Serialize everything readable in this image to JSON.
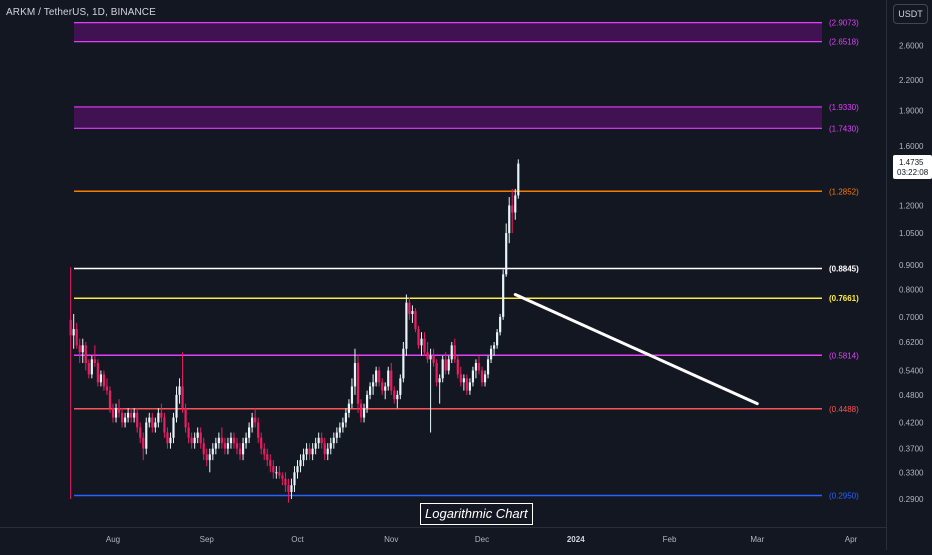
{
  "header": {
    "title": "ARKM / TetherUS, 1D, BINANCE",
    "currency": "USDT"
  },
  "watermark": "Logarithmic Chart",
  "colors": {
    "background": "#131722",
    "up": "#e8f4f8",
    "down": "#e91e63",
    "axis_text": "#b2b5be"
  },
  "chart_data": {
    "type": "candlestick",
    "scale": "log",
    "x_tick_labels": [
      "Aug",
      "Sep",
      "Oct",
      "Nov",
      "Dec",
      "2024",
      "Feb",
      "Mar",
      "Apr"
    ],
    "y_tick_labels": [
      "2.6000",
      "2.2000",
      "1.9000",
      "1.6000",
      "1.2000",
      "1.0500",
      "0.9000",
      "0.8000",
      "0.7000",
      "0.6200",
      "0.5400",
      "0.4800",
      "0.4200",
      "0.3700",
      "0.3300",
      "0.2900"
    ],
    "y_ticks": [
      2.6,
      2.2,
      1.9,
      1.6,
      1.2,
      1.05,
      0.9,
      0.8,
      0.7,
      0.62,
      0.54,
      0.48,
      0.42,
      0.37,
      0.33,
      0.29
    ],
    "ylim": [
      0.262,
      3.12
    ],
    "dates": [
      "2023-07-18",
      "2024-04-10"
    ],
    "x_tick_dates": [
      "2023-08-01",
      "2023-09-01",
      "2023-10-01",
      "2023-11-01",
      "2023-12-01",
      "2024-01-01",
      "2024-02-01",
      "2024-03-01",
      "2024-04-01"
    ],
    "last_price": {
      "value": 1.4735,
      "label": "1.4735",
      "countdown": "03:22:08"
    },
    "horizontal_levels": [
      {
        "value": 1.2852,
        "label": "(1.2852)",
        "color": "#f57c00"
      },
      {
        "value": 0.8845,
        "label": "(0.8845)",
        "color": "#ffffff"
      },
      {
        "value": 0.7661,
        "label": "(0.7661)",
        "color": "#ffeb3b"
      },
      {
        "value": 0.5814,
        "label": "(0.5814)",
        "color": "#e040fb"
      },
      {
        "value": 0.4488,
        "label": "(0.4488)",
        "color": "#ff5252"
      },
      {
        "value": 0.295,
        "label": "(0.2950)",
        "color": "#2962ff"
      }
    ],
    "zones": [
      {
        "low": 2.6518,
        "high": 2.9073,
        "label_low": "(2.6518)",
        "label_high": "(2.9073)",
        "fill": "#4a1259",
        "border": "#e040fb"
      },
      {
        "low": 1.743,
        "high": 1.933,
        "label_low": "(1.7430)",
        "label_high": "(1.9330)",
        "fill": "#4a1259",
        "border": "#e040fb"
      }
    ],
    "trendline": {
      "from": {
        "date": "2023-12-12",
        "value": 0.78
      },
      "to": {
        "date": "2024-03-01",
        "value": 0.46
      },
      "color": "#ffffff"
    },
    "candles": [
      [
        0.69,
        0.89,
        0.29,
        0.64
      ],
      [
        0.64,
        0.71,
        0.6,
        0.66
      ],
      [
        0.66,
        0.68,
        0.6,
        0.61
      ],
      [
        0.61,
        0.63,
        0.56,
        0.59
      ],
      [
        0.59,
        0.63,
        0.56,
        0.61
      ],
      [
        0.61,
        0.62,
        0.54,
        0.56
      ],
      [
        0.56,
        0.57,
        0.52,
        0.53
      ],
      [
        0.53,
        0.58,
        0.52,
        0.57
      ],
      [
        0.57,
        0.61,
        0.55,
        0.56
      ],
      [
        0.56,
        0.57,
        0.5,
        0.51
      ],
      [
        0.51,
        0.54,
        0.5,
        0.53
      ],
      [
        0.53,
        0.54,
        0.49,
        0.5
      ],
      [
        0.5,
        0.52,
        0.48,
        0.49
      ],
      [
        0.49,
        0.5,
        0.44,
        0.45
      ],
      [
        0.45,
        0.46,
        0.42,
        0.43
      ],
      [
        0.43,
        0.46,
        0.42,
        0.45
      ],
      [
        0.45,
        0.47,
        0.43,
        0.44
      ],
      [
        0.44,
        0.45,
        0.41,
        0.42
      ],
      [
        0.42,
        0.44,
        0.41,
        0.43
      ],
      [
        0.43,
        0.45,
        0.42,
        0.44
      ],
      [
        0.44,
        0.45,
        0.42,
        0.43
      ],
      [
        0.43,
        0.45,
        0.42,
        0.44
      ],
      [
        0.44,
        0.45,
        0.4,
        0.41
      ],
      [
        0.41,
        0.42,
        0.38,
        0.39
      ],
      [
        0.39,
        0.4,
        0.35,
        0.37
      ],
      [
        0.37,
        0.43,
        0.36,
        0.42
      ],
      [
        0.42,
        0.44,
        0.41,
        0.43
      ],
      [
        0.43,
        0.44,
        0.4,
        0.41
      ],
      [
        0.41,
        0.43,
        0.4,
        0.42
      ],
      [
        0.42,
        0.45,
        0.41,
        0.44
      ],
      [
        0.44,
        0.46,
        0.42,
        0.43
      ],
      [
        0.43,
        0.44,
        0.39,
        0.4
      ],
      [
        0.4,
        0.41,
        0.37,
        0.38
      ],
      [
        0.38,
        0.4,
        0.37,
        0.39
      ],
      [
        0.39,
        0.44,
        0.38,
        0.43
      ],
      [
        0.43,
        0.5,
        0.42,
        0.48
      ],
      [
        0.48,
        0.52,
        0.46,
        0.5
      ],
      [
        0.5,
        0.59,
        0.44,
        0.45
      ],
      [
        0.45,
        0.46,
        0.4,
        0.41
      ],
      [
        0.41,
        0.42,
        0.38,
        0.39
      ],
      [
        0.39,
        0.4,
        0.37,
        0.38
      ],
      [
        0.38,
        0.4,
        0.37,
        0.39
      ],
      [
        0.39,
        0.41,
        0.38,
        0.4
      ],
      [
        0.4,
        0.41,
        0.37,
        0.38
      ],
      [
        0.38,
        0.39,
        0.35,
        0.36
      ],
      [
        0.36,
        0.37,
        0.34,
        0.35
      ],
      [
        0.35,
        0.37,
        0.33,
        0.36
      ],
      [
        0.36,
        0.38,
        0.35,
        0.37
      ],
      [
        0.37,
        0.39,
        0.36,
        0.38
      ],
      [
        0.38,
        0.4,
        0.37,
        0.39
      ],
      [
        0.39,
        0.41,
        0.37,
        0.38
      ],
      [
        0.38,
        0.39,
        0.36,
        0.37
      ],
      [
        0.37,
        0.39,
        0.36,
        0.38
      ],
      [
        0.38,
        0.4,
        0.37,
        0.39
      ],
      [
        0.39,
        0.4,
        0.37,
        0.38
      ],
      [
        0.38,
        0.39,
        0.36,
        0.37
      ],
      [
        0.37,
        0.38,
        0.35,
        0.36
      ],
      [
        0.36,
        0.39,
        0.35,
        0.38
      ],
      [
        0.38,
        0.4,
        0.37,
        0.39
      ],
      [
        0.39,
        0.42,
        0.38,
        0.41
      ],
      [
        0.41,
        0.44,
        0.4,
        0.43
      ],
      [
        0.43,
        0.45,
        0.41,
        0.42
      ],
      [
        0.42,
        0.43,
        0.38,
        0.39
      ],
      [
        0.39,
        0.4,
        0.36,
        0.37
      ],
      [
        0.37,
        0.38,
        0.35,
        0.36
      ],
      [
        0.36,
        0.37,
        0.34,
        0.35
      ],
      [
        0.35,
        0.36,
        0.33,
        0.34
      ],
      [
        0.34,
        0.35,
        0.32,
        0.33
      ],
      [
        0.33,
        0.34,
        0.32,
        0.33
      ],
      [
        0.33,
        0.34,
        0.32,
        0.325
      ],
      [
        0.325,
        0.33,
        0.31,
        0.32
      ],
      [
        0.32,
        0.33,
        0.3,
        0.31
      ],
      [
        0.31,
        0.32,
        0.285,
        0.3
      ],
      [
        0.3,
        0.32,
        0.29,
        0.31
      ],
      [
        0.31,
        0.34,
        0.3,
        0.33
      ],
      [
        0.33,
        0.35,
        0.32,
        0.34
      ],
      [
        0.34,
        0.36,
        0.33,
        0.35
      ],
      [
        0.35,
        0.37,
        0.34,
        0.36
      ],
      [
        0.36,
        0.38,
        0.35,
        0.37
      ],
      [
        0.37,
        0.38,
        0.35,
        0.36
      ],
      [
        0.36,
        0.38,
        0.35,
        0.37
      ],
      [
        0.37,
        0.39,
        0.36,
        0.38
      ],
      [
        0.38,
        0.4,
        0.37,
        0.39
      ],
      [
        0.39,
        0.4,
        0.37,
        0.38
      ],
      [
        0.38,
        0.39,
        0.35,
        0.36
      ],
      [
        0.36,
        0.38,
        0.35,
        0.37
      ],
      [
        0.37,
        0.39,
        0.36,
        0.38
      ],
      [
        0.38,
        0.4,
        0.37,
        0.39
      ],
      [
        0.39,
        0.41,
        0.38,
        0.4
      ],
      [
        0.4,
        0.42,
        0.39,
        0.41
      ],
      [
        0.41,
        0.43,
        0.4,
        0.42
      ],
      [
        0.42,
        0.45,
        0.41,
        0.44
      ],
      [
        0.44,
        0.47,
        0.43,
        0.46
      ],
      [
        0.46,
        0.52,
        0.45,
        0.5
      ],
      [
        0.5,
        0.6,
        0.48,
        0.56
      ],
      [
        0.56,
        0.58,
        0.44,
        0.46
      ],
      [
        0.46,
        0.47,
        0.42,
        0.43
      ],
      [
        0.43,
        0.46,
        0.42,
        0.45
      ],
      [
        0.45,
        0.49,
        0.44,
        0.48
      ],
      [
        0.48,
        0.51,
        0.47,
        0.5
      ],
      [
        0.5,
        0.53,
        0.48,
        0.51
      ],
      [
        0.51,
        0.55,
        0.5,
        0.54
      ],
      [
        0.54,
        0.55,
        0.5,
        0.51
      ],
      [
        0.51,
        0.52,
        0.48,
        0.49
      ],
      [
        0.49,
        0.51,
        0.47,
        0.5
      ],
      [
        0.5,
        0.55,
        0.49,
        0.54
      ],
      [
        0.54,
        0.56,
        0.48,
        0.49
      ],
      [
        0.49,
        0.5,
        0.46,
        0.47
      ],
      [
        0.47,
        0.49,
        0.45,
        0.48
      ],
      [
        0.48,
        0.53,
        0.47,
        0.52
      ],
      [
        0.52,
        0.62,
        0.51,
        0.6
      ],
      [
        0.6,
        0.78,
        0.58,
        0.75
      ],
      [
        0.75,
        0.77,
        0.69,
        0.71
      ],
      [
        0.71,
        0.74,
        0.68,
        0.72
      ],
      [
        0.72,
        0.73,
        0.65,
        0.66
      ],
      [
        0.66,
        0.67,
        0.6,
        0.61
      ],
      [
        0.61,
        0.65,
        0.58,
        0.63
      ],
      [
        0.63,
        0.65,
        0.58,
        0.59
      ],
      [
        0.59,
        0.62,
        0.56,
        0.57
      ],
      [
        0.57,
        0.6,
        0.4,
        0.58
      ],
      [
        0.58,
        0.6,
        0.55,
        0.56
      ],
      [
        0.56,
        0.57,
        0.5,
        0.51
      ],
      [
        0.51,
        0.53,
        0.46,
        0.52
      ],
      [
        0.52,
        0.58,
        0.51,
        0.57
      ],
      [
        0.57,
        0.59,
        0.53,
        0.54
      ],
      [
        0.54,
        0.58,
        0.53,
        0.57
      ],
      [
        0.57,
        0.62,
        0.56,
        0.61
      ],
      [
        0.61,
        0.63,
        0.56,
        0.57
      ],
      [
        0.57,
        0.58,
        0.52,
        0.53
      ],
      [
        0.53,
        0.55,
        0.5,
        0.51
      ],
      [
        0.51,
        0.53,
        0.49,
        0.52
      ],
      [
        0.52,
        0.53,
        0.48,
        0.49
      ],
      [
        0.49,
        0.52,
        0.48,
        0.51
      ],
      [
        0.51,
        0.55,
        0.5,
        0.54
      ],
      [
        0.54,
        0.57,
        0.52,
        0.56
      ],
      [
        0.56,
        0.58,
        0.53,
        0.54
      ],
      [
        0.54,
        0.55,
        0.5,
        0.51
      ],
      [
        0.51,
        0.54,
        0.5,
        0.53
      ],
      [
        0.53,
        0.58,
        0.52,
        0.57
      ],
      [
        0.57,
        0.61,
        0.56,
        0.6
      ],
      [
        0.6,
        0.62,
        0.58,
        0.61
      ],
      [
        0.61,
        0.66,
        0.6,
        0.65
      ],
      [
        0.65,
        0.71,
        0.64,
        0.7
      ],
      [
        0.7,
        0.88,
        0.69,
        0.86
      ],
      [
        0.86,
        1.1,
        0.85,
        1.05
      ],
      [
        1.05,
        1.25,
        1.0,
        1.2
      ],
      [
        1.2,
        1.3,
        1.05,
        1.16
      ],
      [
        1.16,
        1.3,
        1.12,
        1.26
      ],
      [
        1.26,
        1.5,
        1.24,
        1.47
      ]
    ]
  }
}
